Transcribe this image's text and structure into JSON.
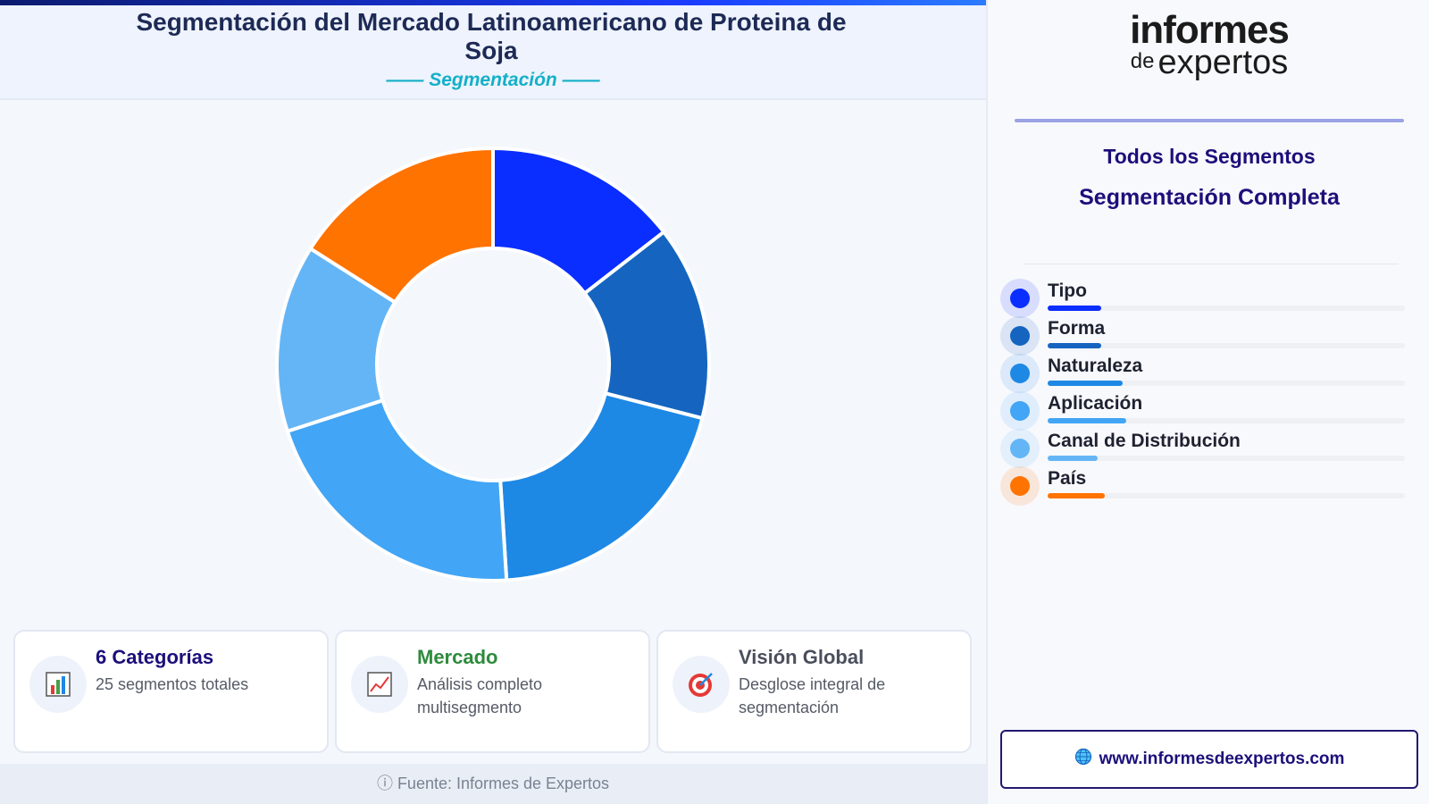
{
  "header": {
    "title": "Segmentación del Mercado Latinoamericano de Proteina de Soja",
    "subtitle": "—— Segmentación ——"
  },
  "chart_data": {
    "type": "pie",
    "variant": "donut",
    "categories": [
      "Tipo",
      "Forma",
      "Naturaleza",
      "Aplicación",
      "Canal de Distribución",
      "País"
    ],
    "values": [
      14.5,
      14.5,
      20,
      21,
      14,
      16
    ],
    "colors": [
      "#0a2eff",
      "#1565c0",
      "#1e88e5",
      "#42a5f5",
      "#64b5f6",
      "#ff7300"
    ],
    "legend": "right"
  },
  "cards": [
    {
      "icon": "bar-chart-icon",
      "title": "6 Categorías",
      "text": "25 segmentos totales",
      "title_color": "#1c0f7a"
    },
    {
      "icon": "trend-chart-icon",
      "title": "Mercado",
      "text": "Análisis completo multisegmento",
      "title_color": "#2e8b3d"
    },
    {
      "icon": "target-icon",
      "title": "Visión Global",
      "text": "Desglose integral de segmentación",
      "title_color": "#4a4f5c"
    }
  ],
  "footer": {
    "source": "ⓘ Fuente: Informes de Expertos"
  },
  "sidebar": {
    "logo_line1": "informes",
    "logo_de": "de",
    "logo_line2": "expertos",
    "heading1": "Todos los Segmentos",
    "heading2": "Segmentación Completa",
    "legend": [
      {
        "label": "Tipo",
        "color": "#0a2eff",
        "level": 0.15
      },
      {
        "label": "Forma",
        "color": "#1565c0",
        "level": 0.15
      },
      {
        "label": "Naturaleza",
        "color": "#1e88e5",
        "level": 0.21
      },
      {
        "label": "Aplicación",
        "color": "#42a5f5",
        "level": 0.22
      },
      {
        "label": "Canal de Distribución",
        "color": "#64b5f6",
        "level": 0.14
      },
      {
        "label": "País",
        "color": "#ff7300",
        "level": 0.16
      }
    ],
    "url": "www.informesdeexpertos.com",
    "url_icon": "globe-icon"
  }
}
